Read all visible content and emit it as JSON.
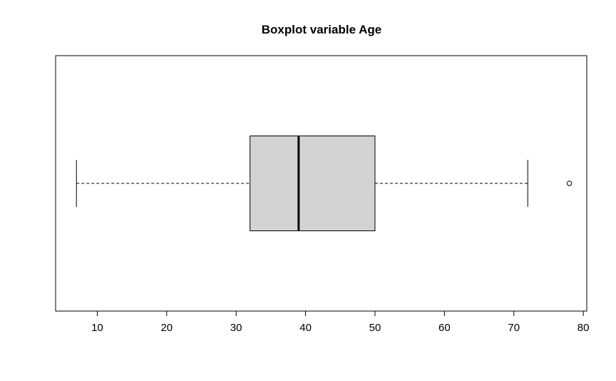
{
  "chart_data": {
    "type": "boxplot",
    "orientation": "horizontal",
    "title": "Boxplot variable Age",
    "xlabel": "",
    "ylabel": "",
    "xlim": [
      4,
      80.5
    ],
    "ticks": [
      10,
      20,
      30,
      40,
      50,
      60,
      70,
      80
    ],
    "tick_labels": [
      "10",
      "20",
      "30",
      "40",
      "50",
      "60",
      "70",
      "80"
    ],
    "series": [
      {
        "whisker_low": 7,
        "q1": 32,
        "median": 39,
        "q3": 50,
        "whisker_high": 72,
        "outliers": [
          78
        ]
      }
    ],
    "colors": {
      "box_fill": "#d3d3d3",
      "stroke": "#000000"
    },
    "grid": false,
    "legend": "none"
  }
}
